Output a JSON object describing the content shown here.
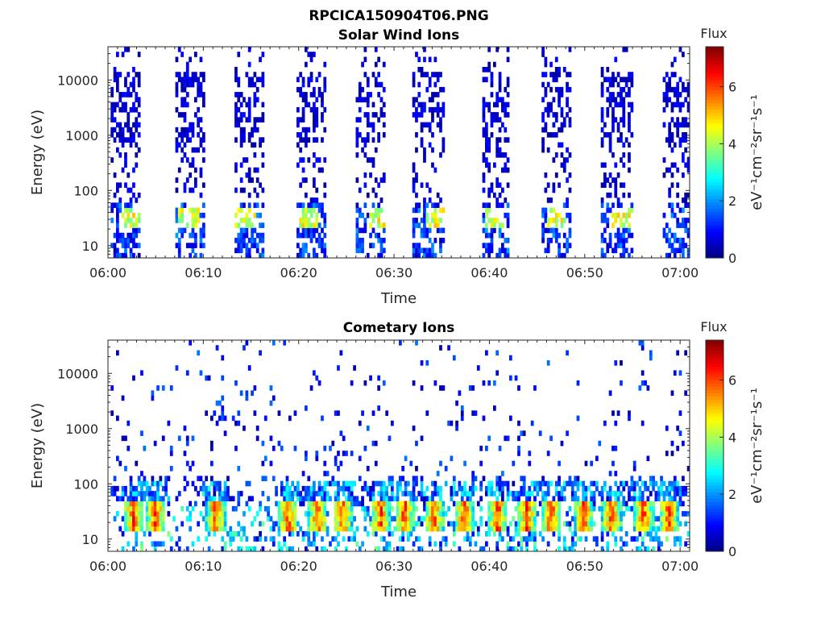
{
  "figure": {
    "title": "RPCICA150904T06.PNG"
  },
  "colors": {
    "colormap": "jet",
    "axis": "#262626",
    "background": "#ffffff"
  },
  "chart_data": [
    {
      "type": "heatmap",
      "title": "Solar Wind Ions",
      "xlabel": "Time",
      "ylabel": "Energy (eV)",
      "x_ticks": [
        "06:00",
        "06:10",
        "06:20",
        "06:30",
        "06:40",
        "06:50",
        "07:00"
      ],
      "x_range_minutes": [
        0,
        61
      ],
      "y_scale": "log",
      "y_ticks": [
        "10",
        "100",
        "1000",
        "10000"
      ],
      "y_range": [
        6,
        40000
      ],
      "colorbar": {
        "label": "Flux",
        "unit": "eV⁻¹cm⁻²sr⁻¹s⁻¹",
        "range": [
          0,
          7.4
        ],
        "ticks": [
          "0",
          "2",
          "4",
          "6"
        ]
      },
      "scan_intervals_minutes": [
        [
          0.3,
          3.5
        ],
        [
          7.2,
          10.2
        ],
        [
          13.2,
          16.4
        ],
        [
          19.8,
          23.0
        ],
        [
          26.0,
          29.2
        ],
        [
          32.0,
          35.2
        ],
        [
          39.2,
          42.2
        ],
        [
          45.4,
          48.6
        ],
        [
          51.8,
          55.0
        ],
        [
          58.2,
          61.0
        ]
      ],
      "low_energy_peaks_minutes": [
        2.5,
        8.5,
        14.5,
        21.0,
        28.5,
        34.5,
        40.5,
        47.0,
        54.0
      ]
    },
    {
      "type": "heatmap",
      "title": "Cometary Ions",
      "xlabel": "Time",
      "ylabel": "Energy (eV)",
      "x_ticks": [
        "06:00",
        "06:10",
        "06:20",
        "06:30",
        "06:40",
        "06:50",
        "07:00"
      ],
      "x_range_minutes": [
        0,
        61
      ],
      "y_scale": "log",
      "y_ticks": [
        "10",
        "100",
        "1000",
        "10000"
      ],
      "y_range": [
        6,
        40000
      ],
      "colorbar": {
        "label": "Flux",
        "unit": "eV⁻¹cm⁻²sr⁻¹s⁻¹",
        "range": [
          0,
          7.4
        ],
        "ticks": [
          "0",
          "2",
          "4",
          "6"
        ]
      },
      "peak_times_minutes": [
        2.7,
        5.0,
        11.3,
        18.9,
        22.0,
        24.6,
        28.6,
        31.1,
        34.2,
        37.4,
        40.9,
        43.9,
        46.5,
        49.9,
        52.8,
        56.2,
        58.8
      ],
      "peak_energy_eV": 25,
      "peak_flux": 6.8
    }
  ]
}
